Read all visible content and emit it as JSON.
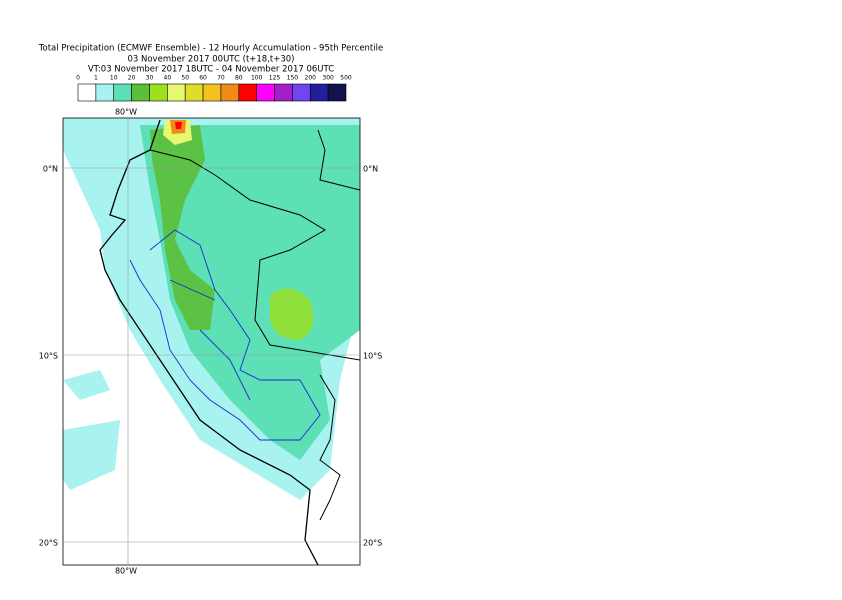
{
  "header": {
    "title": [
      "Total Precipitation (ECMWF Ensemble) - 12 Hourly Accumulation - 95th Percentile",
      "03 November 2017 00UTC (t+18,t+30)",
      "VT:03 November 2017 18UTC - 04 November 2017 06UTC"
    ]
  },
  "legend": {
    "labels": [
      "0",
      "1",
      "10",
      "20",
      "30",
      "40",
      "50",
      "60",
      "70",
      "80",
      "100",
      "125",
      "150",
      "200",
      "300",
      "500"
    ],
    "colors": [
      "#ffffff",
      "#a8f2f0",
      "#5de0b6",
      "#5cbf3a",
      "#9ee01e",
      "#e6f870",
      "#dede28",
      "#f2c21e",
      "#f28a1a",
      "#ff0000",
      "#ff00ff",
      "#a21ec8",
      "#7046f0",
      "#20209e",
      "#12124c"
    ]
  },
  "map": {
    "lon_label": "80°W",
    "lat_labels": [
      "0°N",
      "10°S",
      "20°S"
    ]
  }
}
